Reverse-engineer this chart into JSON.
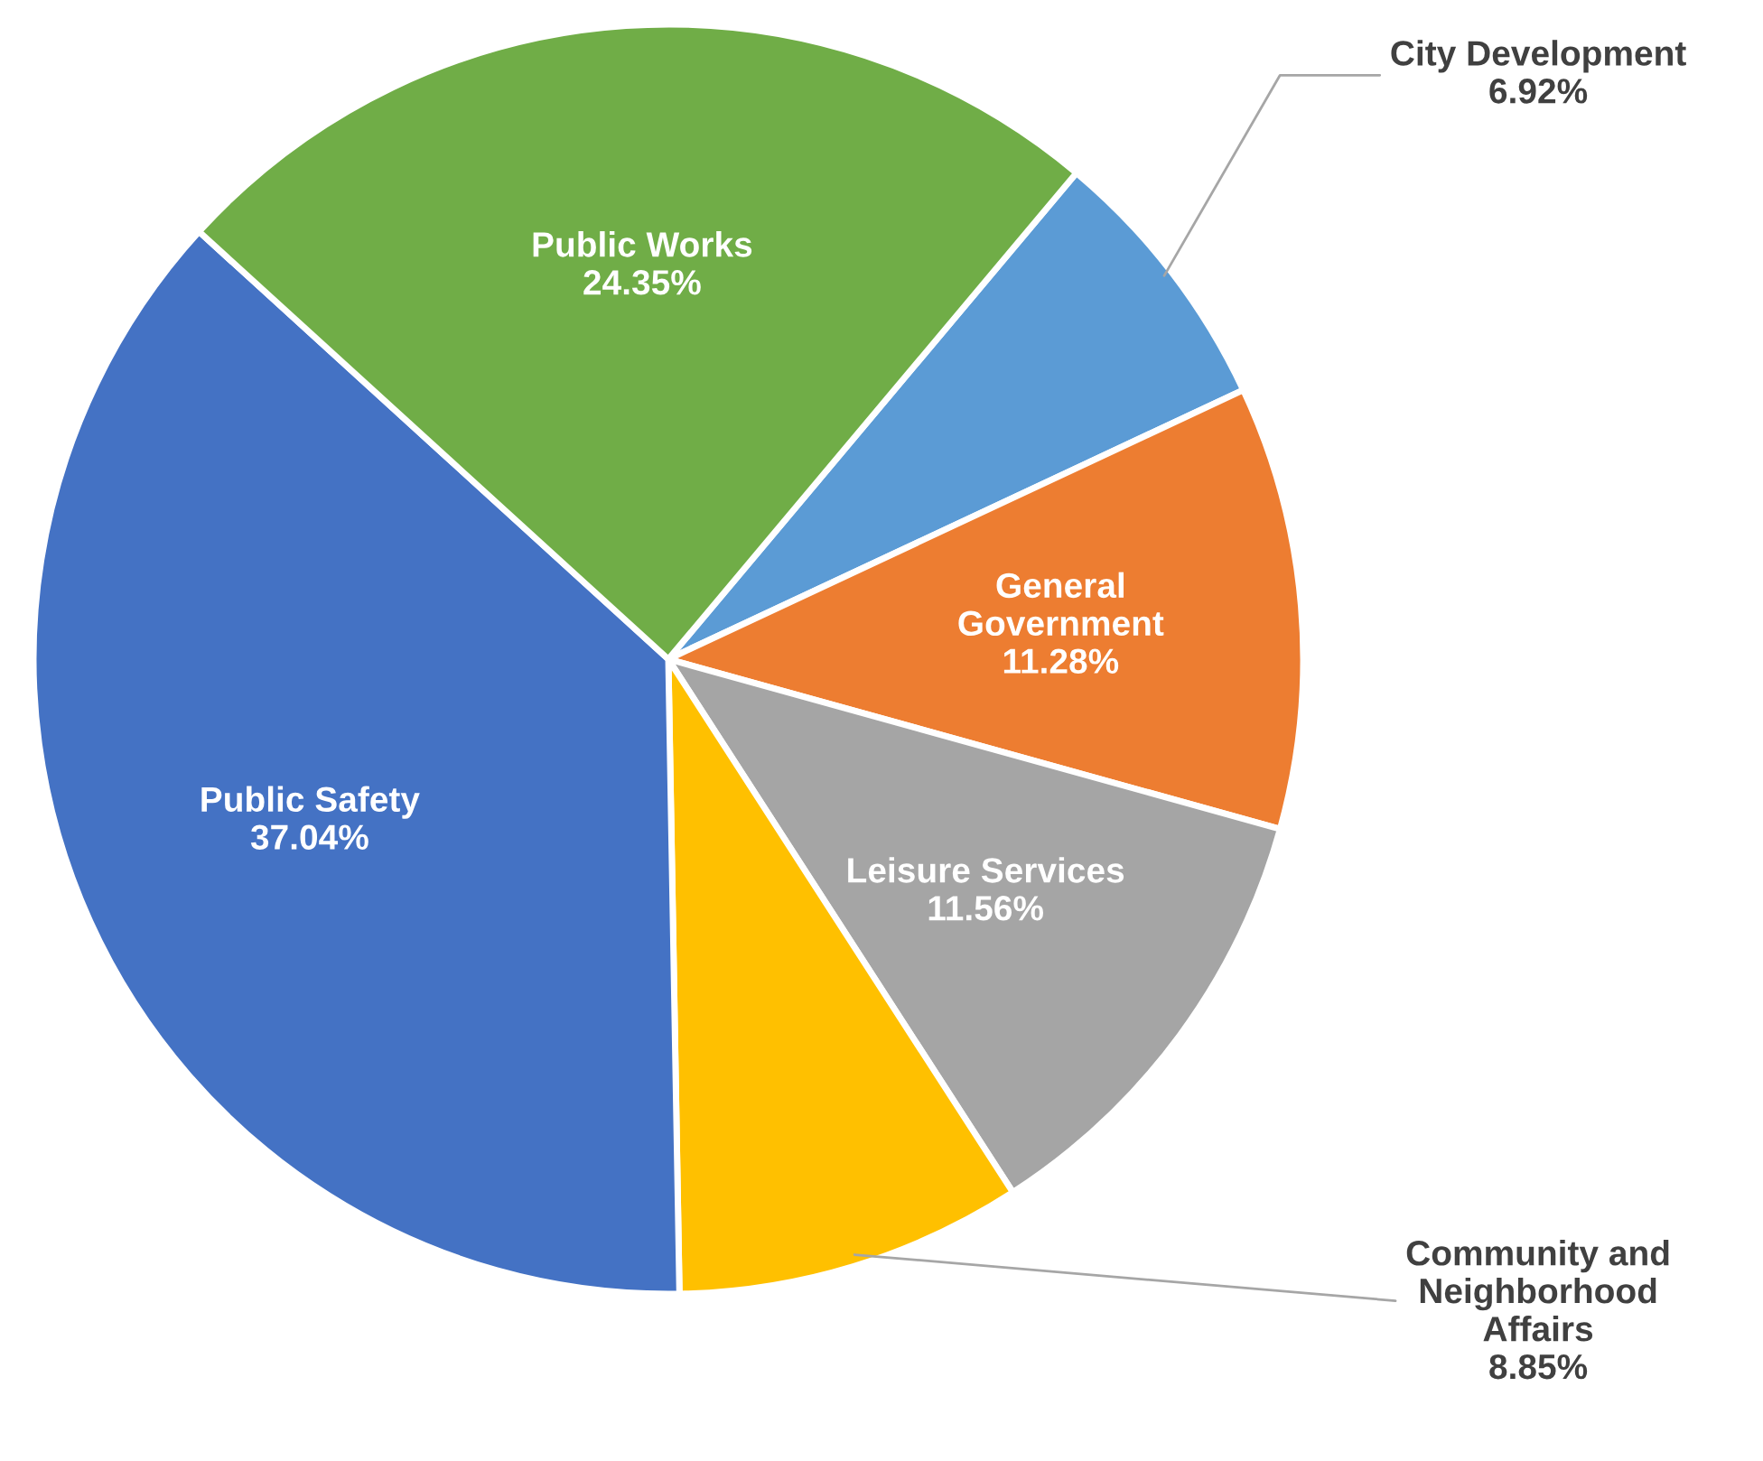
{
  "chart_data": {
    "type": "pie",
    "categories": [
      "City Development",
      "General\nGovernment",
      "Leisure Services",
      "Community and\nNeighborhood\nAffairs",
      "Public Safety",
      "Public Works"
    ],
    "values": [
      6.92,
      11.28,
      11.56,
      8.85,
      37.04,
      24.35
    ],
    "colors": [
      "#5b9bd5",
      "#ed7d31",
      "#a5a5a5",
      "#ffc000",
      "#4472c4",
      "#70ad47"
    ],
    "value_labels": [
      "6.92%",
      "11.28%",
      "11.56%",
      "8.85%",
      "37.04%",
      "24.35%"
    ]
  }
}
